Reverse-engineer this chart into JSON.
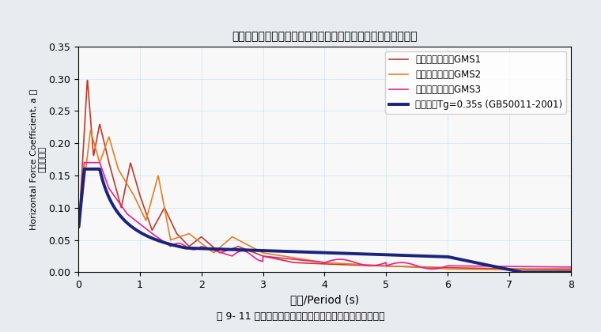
{
  "title": "地震波时程地震影响系数曲线与中国规范及安评报告反应谱对比",
  "xlabel": "周期/Period (s)",
  "ylabel_en": "Horizontal Force Coefficient, a 地",
  "ylabel_cn": "震影响系数",
  "caption": "图 9- 11 小震时程所对应地震影响系数曲线与中国规范对比",
  "xlim": [
    0,
    8
  ],
  "ylim": [
    0,
    0.35
  ],
  "xticks": [
    0,
    1,
    2,
    3,
    4,
    5,
    6,
    7,
    8
  ],
  "yticks": [
    0,
    0.05,
    0.1,
    0.15,
    0.2,
    0.25,
    0.3,
    0.35
  ],
  "legend": [
    {
      "label": "天然波（小震）GMS1",
      "color": "#c0392b",
      "lw": 1.2
    },
    {
      "label": "天然波（小震）GMS2",
      "color": "#e67e22",
      "lw": 1.2
    },
    {
      "label": "人工波（小震）GMS3",
      "color": "#e91e8c",
      "lw": 1.2
    },
    {
      "label": "多遇地震Tg=0.35s (GB50011-2001)",
      "color": "#1a237e",
      "lw": 2.8
    }
  ],
  "bg_color": "#f0f4f8",
  "plot_bg": "#ffffff"
}
